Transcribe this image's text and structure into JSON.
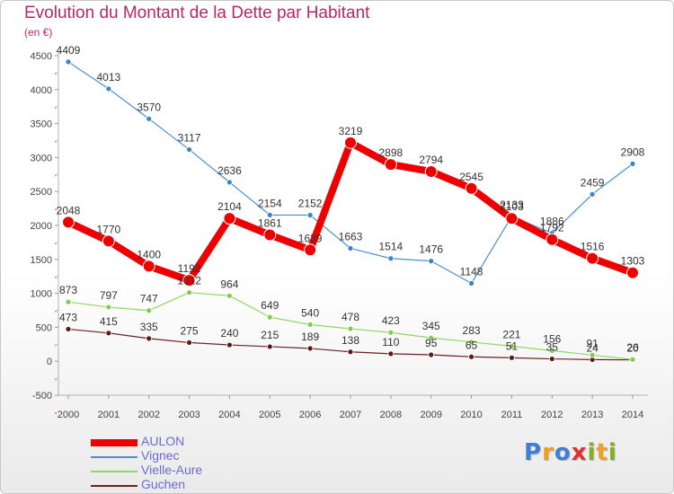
{
  "header": {
    "title": "Evolution du Montant de la Dette par Habitant",
    "subtitle": "(en €)"
  },
  "brand": {
    "text": "Proxiti",
    "letters": [
      {
        "char": "P",
        "color": "#3f7fd0"
      },
      {
        "char": "r",
        "color": "#f0a020"
      },
      {
        "char": "o",
        "color": "#3f7fd0"
      },
      {
        "char": "x",
        "color": "#e03030"
      },
      {
        "char": "i",
        "color": "#80b020"
      },
      {
        "char": "t",
        "color": "#f0a020"
      },
      {
        "char": "i",
        "color": "#80b020"
      }
    ]
  },
  "chart_data": {
    "type": "line",
    "title": "Evolution du Montant de la Dette par Habitant",
    "ylabel": "(en €)",
    "xlabel": "",
    "x": [
      2000,
      2001,
      2002,
      2003,
      2004,
      2005,
      2006,
      2007,
      2008,
      2009,
      2010,
      2011,
      2012,
      2013,
      2014
    ],
    "ylim": [
      -500,
      4500
    ],
    "yticks": [
      -500,
      0,
      500,
      1000,
      1500,
      2000,
      2500,
      3000,
      3500,
      4000,
      4500
    ],
    "grid": false,
    "legend": "bottom-left",
    "series": [
      {
        "name": "AULON",
        "color": "#ee0000",
        "values": [
          2048,
          1770,
          1400,
          1192,
          2104,
          1861,
          1639,
          3219,
          2898,
          2794,
          2545,
          2103,
          1792,
          1516,
          1303
        ]
      },
      {
        "name": "Vignec",
        "color": "#4a90d0",
        "values": [
          4409,
          4013,
          3570,
          3117,
          2636,
          2154,
          2152,
          1663,
          1514,
          1476,
          1148,
          2133,
          1886,
          2459,
          2908
        ]
      },
      {
        "name": "Vielle-Aure",
        "color": "#90d860",
        "values": [
          873,
          797,
          747,
          1012,
          964,
          649,
          540,
          478,
          423,
          345,
          283,
          221,
          156,
          91,
          26
        ]
      },
      {
        "name": "Guchen",
        "color": "#6a2020",
        "values": [
          473,
          415,
          335,
          275,
          240,
          215,
          189,
          138,
          110,
          95,
          65,
          51,
          35,
          24,
          20
        ]
      }
    ]
  }
}
